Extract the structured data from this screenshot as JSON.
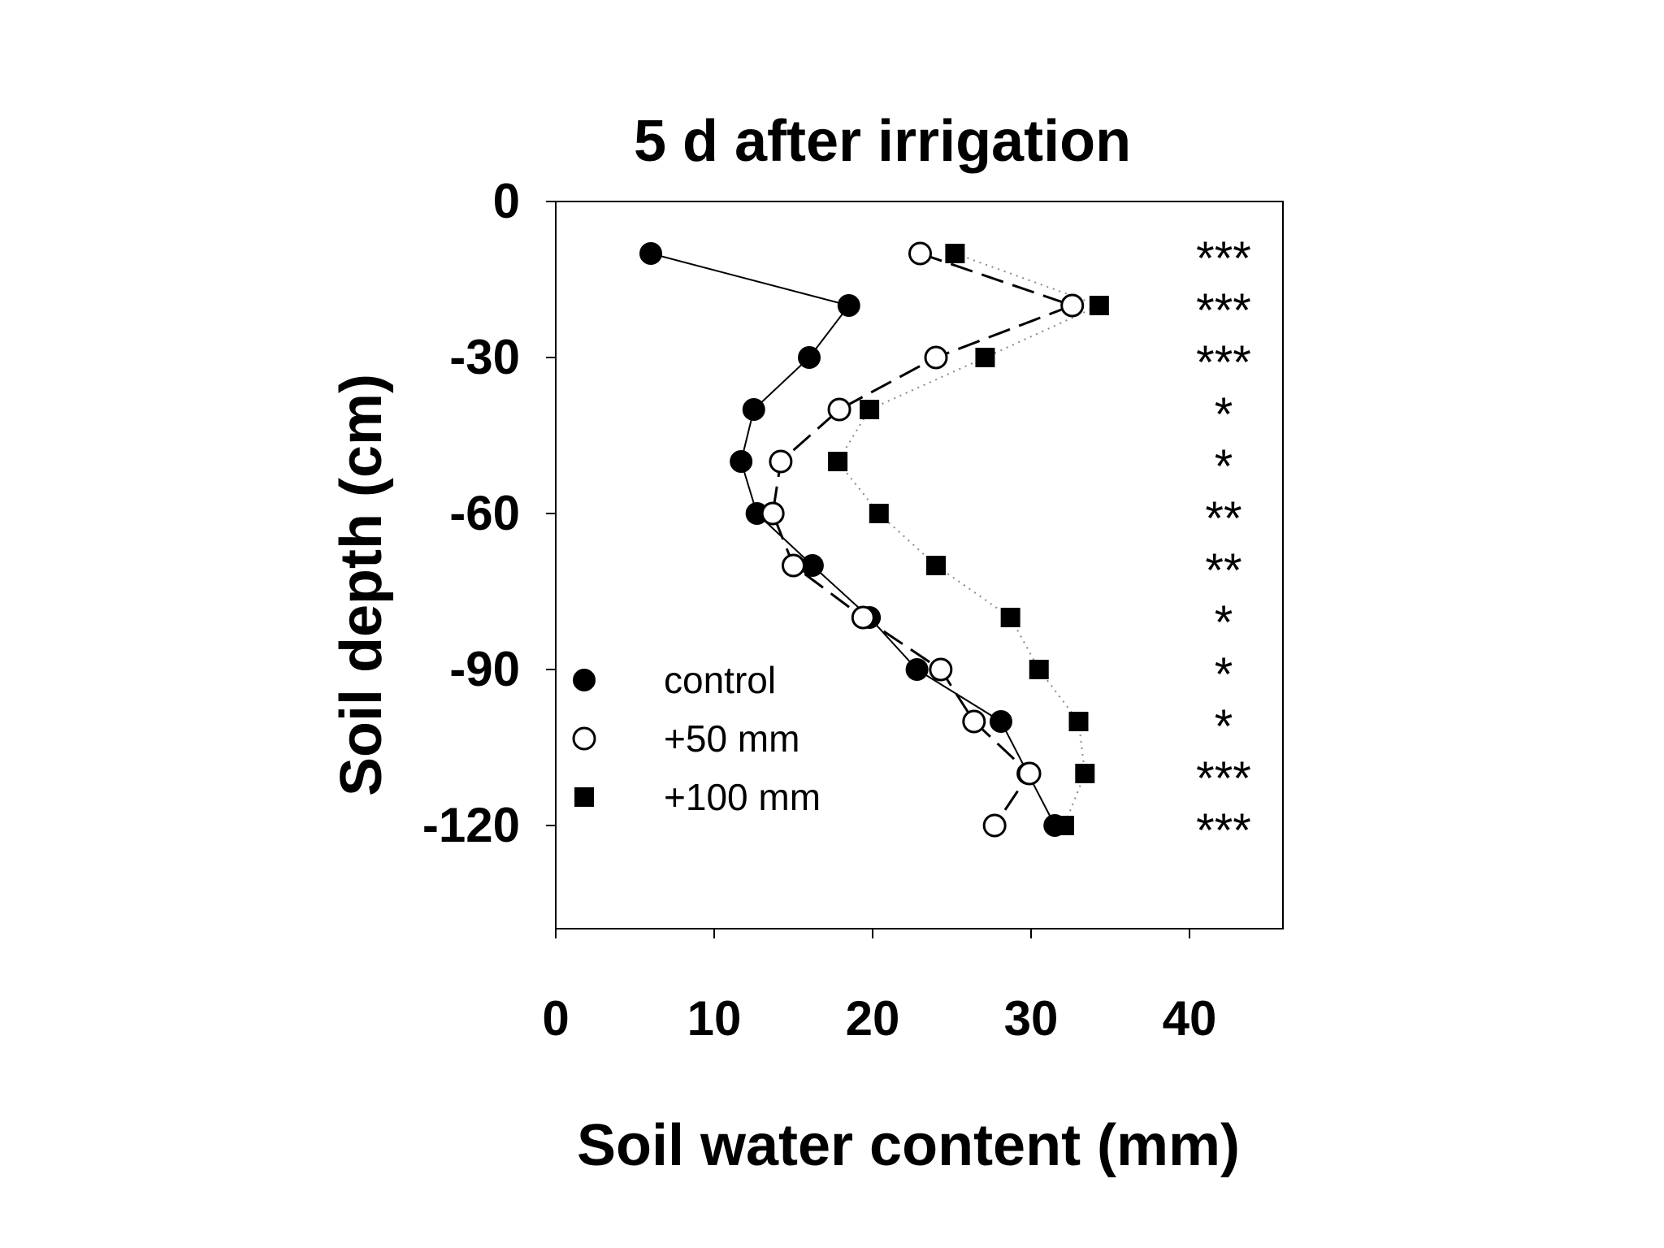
{
  "chart_data": {
    "type": "scatter",
    "title": "5 d after irrigation",
    "xlabel": "Soil water content (mm)",
    "ylabel": "Soil depth (cm)",
    "xlim": [
      0,
      46
    ],
    "ylim": [
      -140,
      0
    ],
    "x_ticks": [
      "0",
      "10",
      "20",
      "30",
      "40"
    ],
    "x_tick_values": [
      0,
      10,
      20,
      30,
      40
    ],
    "y_ticks": [
      "0",
      "-30",
      "-60",
      "-90",
      "-120"
    ],
    "y_tick_values": [
      0,
      -30,
      -60,
      -90,
      -120
    ],
    "grid": false,
    "legend_position": "bottom-left",
    "series": [
      {
        "name": "control",
        "marker": "filled-circle",
        "line": "solid",
        "x": [
          6.0,
          18.5,
          16.0,
          12.5,
          11.7,
          12.7,
          16.2,
          19.8,
          22.8,
          28.1,
          29.8,
          31.5
        ],
        "y": [
          -10,
          -20,
          -30,
          -40,
          -50,
          -60,
          -70,
          -80,
          -90,
          -100,
          -110,
          -120
        ]
      },
      {
        "name": "+50 mm",
        "marker": "open-circle",
        "line": "dashed",
        "x": [
          23.0,
          32.6,
          24.0,
          17.9,
          14.2,
          13.7,
          15.0,
          19.4,
          24.3,
          26.4,
          29.9,
          27.7
        ],
        "y": [
          -10,
          -20,
          -30,
          -40,
          -50,
          -60,
          -70,
          -80,
          -90,
          -100,
          -110,
          -120
        ]
      },
      {
        "name": "+100 mm",
        "marker": "filled-square",
        "line": "dotted",
        "x": [
          25.2,
          34.3,
          27.1,
          19.8,
          17.8,
          20.4,
          24.0,
          28.7,
          30.5,
          33.0,
          33.4,
          32.1
        ],
        "y": [
          -10,
          -20,
          -30,
          -40,
          -50,
          -60,
          -70,
          -80,
          -90,
          -100,
          -110,
          -120
        ]
      }
    ],
    "annotations": [
      {
        "depth": -10,
        "text": "***"
      },
      {
        "depth": -20,
        "text": "***"
      },
      {
        "depth": -30,
        "text": "***"
      },
      {
        "depth": -40,
        "text": "*"
      },
      {
        "depth": -50,
        "text": "*"
      },
      {
        "depth": -60,
        "text": "**"
      },
      {
        "depth": -70,
        "text": "**"
      },
      {
        "depth": -80,
        "text": "*"
      },
      {
        "depth": -90,
        "text": "*"
      },
      {
        "depth": -100,
        "text": "*"
      },
      {
        "depth": -110,
        "text": "***"
      },
      {
        "depth": -120,
        "text": "***"
      }
    ]
  }
}
